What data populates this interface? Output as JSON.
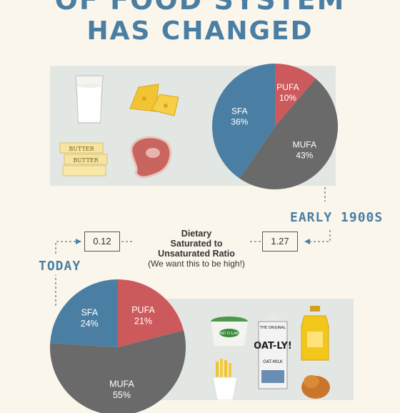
{
  "title": {
    "line1": "OF FOOD SYSTEM",
    "line2": "HAS CHANGED"
  },
  "eras": {
    "early": "EARLY 1900S",
    "today": "TODAY"
  },
  "ratio": {
    "label_lines": [
      "Dietary",
      "Saturated to",
      "Unsaturated Ratio"
    ],
    "note": "(We want this to be high!)",
    "today_value": "0.12",
    "early_value": "1.27"
  },
  "foods": {
    "butter_label": "BUTTER",
    "tub_label": "LAND O LAKES",
    "carton_label": "OAT-LY!",
    "carton_top": "THE ORIGINAL",
    "carton_sub": "OAT-MILK"
  },
  "colors": {
    "sfa": "#4a7fa3",
    "pufa": "#cc5a5d",
    "mufa": "#6a6a6a",
    "title": "#4a7fa3"
  },
  "chart_data": [
    {
      "type": "pie",
      "era": "EARLY 1900S",
      "slices": [
        {
          "label": "PUFA",
          "value": 10,
          "display": "10%",
          "color": "#cc5a5d"
        },
        {
          "label": "MUFA",
          "value": 43,
          "display": "43%",
          "color": "#6a6a6a"
        },
        {
          "label": "SFA",
          "value": 36,
          "display": "36%",
          "color": "#4a7fa3"
        }
      ]
    },
    {
      "type": "pie",
      "era": "TODAY",
      "slices": [
        {
          "label": "PUFA",
          "value": 21,
          "display": "21%",
          "color": "#cc5a5d"
        },
        {
          "label": "MUFA",
          "value": 55,
          "display": "55%",
          "color": "#6a6a6a"
        },
        {
          "label": "SFA",
          "value": 24,
          "display": "24%",
          "color": "#4a7fa3"
        }
      ]
    }
  ]
}
